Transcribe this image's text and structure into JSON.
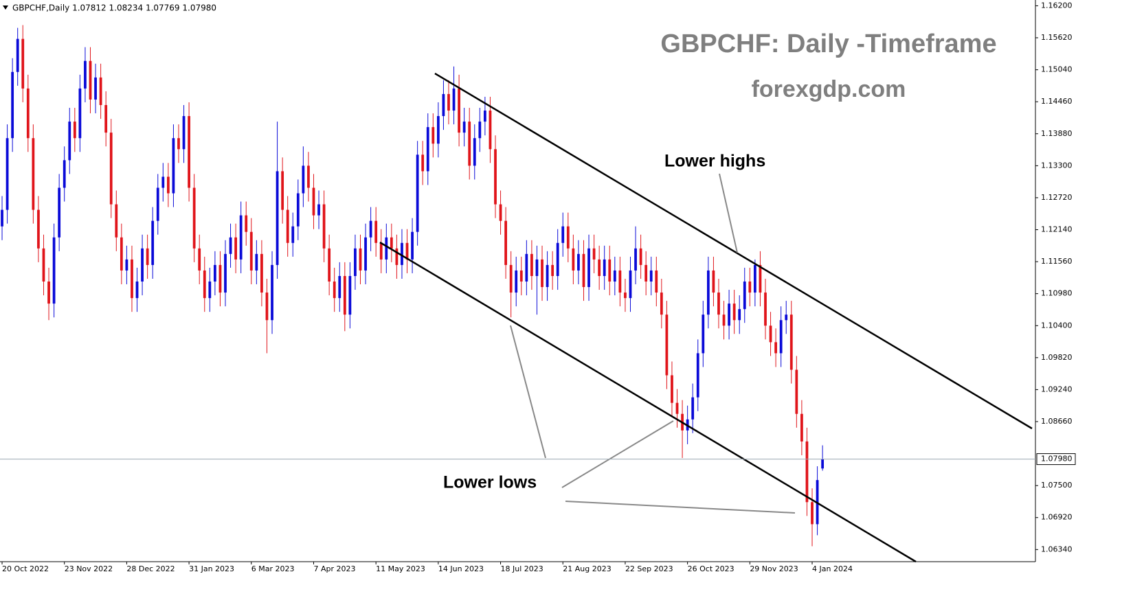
{
  "chart_data": {
    "type": "candlestick",
    "header": "GBPCHF,Daily  1.07812 1.08234 1.07769 1.07980",
    "title": "GBPCHF: Daily -Timeframe",
    "subtitle": "forexgdp.com",
    "annotations": [
      "Lower highs",
      "Lower lows"
    ],
    "up_color": "#0a0ad8",
    "down_color": "#e0141a",
    "current_price": {
      "value": 1.0798,
      "label": "1.07980"
    },
    "xlim": [
      -0.4,
      199
    ],
    "ylim": [
      1.0612,
      1.1628
    ],
    "xticks": [
      {
        "value": 0,
        "label": "20 Oct 2022"
      },
      {
        "value": 12,
        "label": "23 Nov 2022"
      },
      {
        "value": 24,
        "label": "28 Dec 2022"
      },
      {
        "value": 36,
        "label": "31 Jan 2023"
      },
      {
        "value": 48,
        "label": "6 Mar 2023"
      },
      {
        "value": 60,
        "label": "7 Apr 2023"
      },
      {
        "value": 72,
        "label": "11 May 2023"
      },
      {
        "value": 84,
        "label": "14 Jun 2023"
      },
      {
        "value": 96,
        "label": "18 Jul 2023"
      },
      {
        "value": 108,
        "label": "21 Aug 2023"
      },
      {
        "value": 120,
        "label": "22 Sep 2023"
      },
      {
        "value": 132,
        "label": "26 Oct 2023"
      },
      {
        "value": 144,
        "label": "29 Nov 2023"
      },
      {
        "value": 156,
        "label": "4 Jan 2024"
      }
    ],
    "yticks": [
      {
        "value": 1.162,
        "label": "1.16200"
      },
      {
        "value": 1.1562,
        "label": "1.15620"
      },
      {
        "value": 1.1504,
        "label": "1.15040"
      },
      {
        "value": 1.1446,
        "label": "1.14460"
      },
      {
        "value": 1.1388,
        "label": "1.13880"
      },
      {
        "value": 1.133,
        "label": "1.13300"
      },
      {
        "value": 1.1272,
        "label": "1.12720"
      },
      {
        "value": 1.1214,
        "label": "1.12140"
      },
      {
        "value": 1.1156,
        "label": "1.11560"
      },
      {
        "value": 1.1098,
        "label": "1.10980"
      },
      {
        "value": 1.104,
        "label": "1.10400"
      },
      {
        "value": 1.0982,
        "label": "1.09820"
      },
      {
        "value": 1.0924,
        "label": "1.09240"
      },
      {
        "value": 1.0866,
        "label": "1.08660"
      },
      {
        "value": 1.075,
        "label": "1.07500"
      },
      {
        "value": 1.0692,
        "label": "1.06920"
      },
      {
        "value": 1.0634,
        "label": "1.06340"
      }
    ],
    "open": [
      1.122,
      1.125,
      1.138,
      1.15,
      1.156,
      1.147,
      1.138,
      1.125,
      1.118,
      1.112,
      1.108,
      1.12,
      1.129,
      1.134,
      1.141,
      1.138,
      1.147,
      1.152,
      1.145,
      1.149,
      1.144,
      1.139,
      1.126,
      1.12,
      1.114,
      1.116,
      1.109,
      1.112,
      1.118,
      1.115,
      1.123,
      1.129,
      1.131,
      1.128,
      1.138,
      1.136,
      1.142,
      1.129,
      1.118,
      1.114,
      1.109,
      1.112,
      1.115,
      1.11,
      1.117,
      1.12,
      1.116,
      1.124,
      1.121,
      1.114,
      1.117,
      1.11,
      1.105,
      1.115,
      1.132,
      1.125,
      1.119,
      1.122,
      1.128,
      1.133,
      1.129,
      1.124,
      1.126,
      1.118,
      1.112,
      1.109,
      1.113,
      1.106,
      1.113,
      1.118,
      1.114,
      1.12,
      1.123,
      1.119,
      1.116,
      1.12,
      1.118,
      1.115,
      1.119,
      1.116,
      1.121,
      1.135,
      1.132,
      1.14,
      1.137,
      1.142,
      1.146,
      1.143,
      1.147,
      1.139,
      1.141,
      1.133,
      1.138,
      1.141,
      1.143,
      1.136,
      1.126,
      1.123,
      1.115,
      1.11,
      1.114,
      1.112,
      1.117,
      1.113,
      1.116,
      1.111,
      1.115,
      1.113,
      1.119,
      1.122,
      1.118,
      1.114,
      1.117,
      1.111,
      1.118,
      1.116,
      1.113,
      1.116,
      1.112,
      1.114,
      1.11,
      1.109,
      1.114,
      1.118,
      1.115,
      1.112,
      1.114,
      1.11,
      1.106,
      1.095,
      1.09,
      1.088,
      1.085,
      1.087,
      1.091,
      1.099,
      1.106,
      1.114,
      1.11,
      1.106,
      1.104,
      1.108,
      1.105,
      1.107,
      1.112,
      1.11,
      1.115,
      1.11,
      1.104,
      1.101,
      1.099,
      1.105,
      1.106,
      1.096,
      1.088,
      1.083,
      1.072,
      1.068,
      1.0781
    ],
    "high": [
      1.1275,
      1.1405,
      1.1525,
      1.158,
      1.1585,
      1.1495,
      1.1405,
      1.1275,
      1.1205,
      1.1145,
      1.1225,
      1.1315,
      1.1365,
      1.1435,
      1.1435,
      1.1495,
      1.1545,
      1.1545,
      1.1515,
      1.1515,
      1.1465,
      1.1415,
      1.1285,
      1.1225,
      1.1185,
      1.1185,
      1.1145,
      1.1205,
      1.1205,
      1.1255,
      1.1315,
      1.1335,
      1.1335,
      1.1405,
      1.1405,
      1.144,
      1.1445,
      1.1315,
      1.1205,
      1.1165,
      1.1145,
      1.1175,
      1.1175,
      1.1195,
      1.1225,
      1.1225,
      1.1265,
      1.1265,
      1.1235,
      1.1195,
      1.1195,
      1.1125,
      1.1175,
      1.141,
      1.1345,
      1.1275,
      1.1245,
      1.1305,
      1.1365,
      1.1355,
      1.1315,
      1.1285,
      1.1285,
      1.1205,
      1.1145,
      1.1155,
      1.1155,
      1.1155,
      1.1205,
      1.1205,
      1.1225,
      1.1255,
      1.1255,
      1.1215,
      1.1225,
      1.1225,
      1.1205,
      1.1215,
      1.1215,
      1.1235,
      1.1375,
      1.1375,
      1.1425,
      1.1425,
      1.1445,
      1.1485,
      1.1485,
      1.151,
      1.1495,
      1.1435,
      1.1435,
      1.1405,
      1.1435,
      1.1455,
      1.1455,
      1.1385,
      1.1285,
      1.1255,
      1.1175,
      1.1165,
      1.1165,
      1.1195,
      1.1195,
      1.1185,
      1.1185,
      1.1175,
      1.1175,
      1.1215,
      1.1245,
      1.1245,
      1.1205,
      1.1195,
      1.1195,
      1.1205,
      1.1205,
      1.1185,
      1.1185,
      1.1185,
      1.1165,
      1.1165,
      1.1125,
      1.1165,
      1.122,
      1.1205,
      1.1175,
      1.1165,
      1.1165,
      1.1125,
      1.1085,
      1.0975,
      1.0925,
      1.0905,
      1.0895,
      1.0935,
      1.1015,
      1.1085,
      1.1165,
      1.1165,
      1.1125,
      1.1085,
      1.1105,
      1.1105,
      1.1095,
      1.1145,
      1.1145,
      1.116,
      1.1175,
      1.1125,
      1.1065,
      1.1035,
      1.1075,
      1.1085,
      1.1085,
      1.0985,
      1.0905,
      1.0855,
      1.0745,
      1.0785,
      1.0823
    ],
    "low": [
      1.1195,
      1.1225,
      1.1355,
      1.1475,
      1.1445,
      1.1355,
      1.1225,
      1.1155,
      1.1095,
      1.105,
      1.1055,
      1.1175,
      1.1265,
      1.1315,
      1.1355,
      1.1355,
      1.1445,
      1.1425,
      1.1425,
      1.1415,
      1.1365,
      1.1235,
      1.1175,
      1.1115,
      1.1115,
      1.1065,
      1.1065,
      1.1095,
      1.1125,
      1.1125,
      1.1205,
      1.1265,
      1.1255,
      1.1255,
      1.1335,
      1.1335,
      1.1265,
      1.1155,
      1.1115,
      1.1065,
      1.1065,
      1.1095,
      1.1075,
      1.1075,
      1.1145,
      1.1135,
      1.1135,
      1.1185,
      1.1115,
      1.1115,
      1.1075,
      1.099,
      1.1025,
      1.1125,
      1.1225,
      1.1165,
      1.1165,
      1.1195,
      1.1255,
      1.1265,
      1.1215,
      1.1215,
      1.1155,
      1.1095,
      1.1065,
      1.1065,
      1.103,
      1.1035,
      1.1105,
      1.1115,
      1.1115,
      1.1175,
      1.1165,
      1.1135,
      1.1135,
      1.1155,
      1.1125,
      1.1125,
      1.1135,
      1.1135,
      1.1185,
      1.1295,
      1.1295,
      1.1345,
      1.1345,
      1.1395,
      1.1405,
      1.1405,
      1.1365,
      1.1365,
      1.1305,
      1.1305,
      1.1355,
      1.1385,
      1.1335,
      1.1235,
      1.1205,
      1.1125,
      1.1055,
      1.1075,
      1.1095,
      1.1095,
      1.1105,
      1.106,
      1.1085,
      1.1085,
      1.1105,
      1.1105,
      1.1165,
      1.1155,
      1.1115,
      1.1115,
      1.1085,
      1.1085,
      1.1135,
      1.1105,
      1.1105,
      1.1095,
      1.1095,
      1.1075,
      1.1065,
      1.1065,
      1.1115,
      1.1125,
      1.1095,
      1.1095,
      1.1075,
      1.1035,
      1.0925,
      1.0875,
      1.0855,
      1.08,
      1.0825,
      1.0845,
      1.0885,
      1.0965,
      1.1035,
      1.1075,
      1.1035,
      1.1015,
      1.1015,
      1.1025,
      1.1025,
      1.1045,
      1.1075,
      1.1075,
      1.1075,
      1.1015,
      1.0985,
      1.0965,
      1.0965,
      1.1025,
      1.0935,
      1.0855,
      1.0805,
      1.0695,
      1.064,
      1.066,
      1.0777
    ],
    "close": [
      1.125,
      1.138,
      1.15,
      1.156,
      1.147,
      1.138,
      1.125,
      1.118,
      1.112,
      1.108,
      1.12,
      1.129,
      1.134,
      1.141,
      1.138,
      1.147,
      1.152,
      1.145,
      1.149,
      1.144,
      1.139,
      1.126,
      1.12,
      1.114,
      1.116,
      1.109,
      1.112,
      1.118,
      1.115,
      1.123,
      1.129,
      1.131,
      1.128,
      1.138,
      1.136,
      1.142,
      1.129,
      1.118,
      1.114,
      1.109,
      1.112,
      1.115,
      1.11,
      1.117,
      1.12,
      1.116,
      1.124,
      1.121,
      1.114,
      1.117,
      1.11,
      1.105,
      1.115,
      1.132,
      1.125,
      1.119,
      1.122,
      1.128,
      1.133,
      1.129,
      1.124,
      1.126,
      1.118,
      1.112,
      1.109,
      1.113,
      1.106,
      1.113,
      1.118,
      1.114,
      1.12,
      1.123,
      1.119,
      1.116,
      1.12,
      1.118,
      1.115,
      1.119,
      1.116,
      1.121,
      1.135,
      1.132,
      1.14,
      1.137,
      1.142,
      1.146,
      1.143,
      1.147,
      1.139,
      1.141,
      1.133,
      1.138,
      1.141,
      1.143,
      1.136,
      1.126,
      1.123,
      1.115,
      1.11,
      1.114,
      1.112,
      1.117,
      1.113,
      1.116,
      1.111,
      1.115,
      1.113,
      1.119,
      1.122,
      1.118,
      1.114,
      1.117,
      1.111,
      1.118,
      1.116,
      1.113,
      1.116,
      1.112,
      1.114,
      1.11,
      1.109,
      1.114,
      1.118,
      1.115,
      1.112,
      1.114,
      1.11,
      1.106,
      1.095,
      1.09,
      1.088,
      1.085,
      1.087,
      1.091,
      1.099,
      1.106,
      1.114,
      1.11,
      1.106,
      1.104,
      1.108,
      1.105,
      1.107,
      1.112,
      1.11,
      1.115,
      1.11,
      1.104,
      1.101,
      1.099,
      1.105,
      1.106,
      1.096,
      1.088,
      1.083,
      1.072,
      1.068,
      1.076,
      1.0798
    ]
  }
}
